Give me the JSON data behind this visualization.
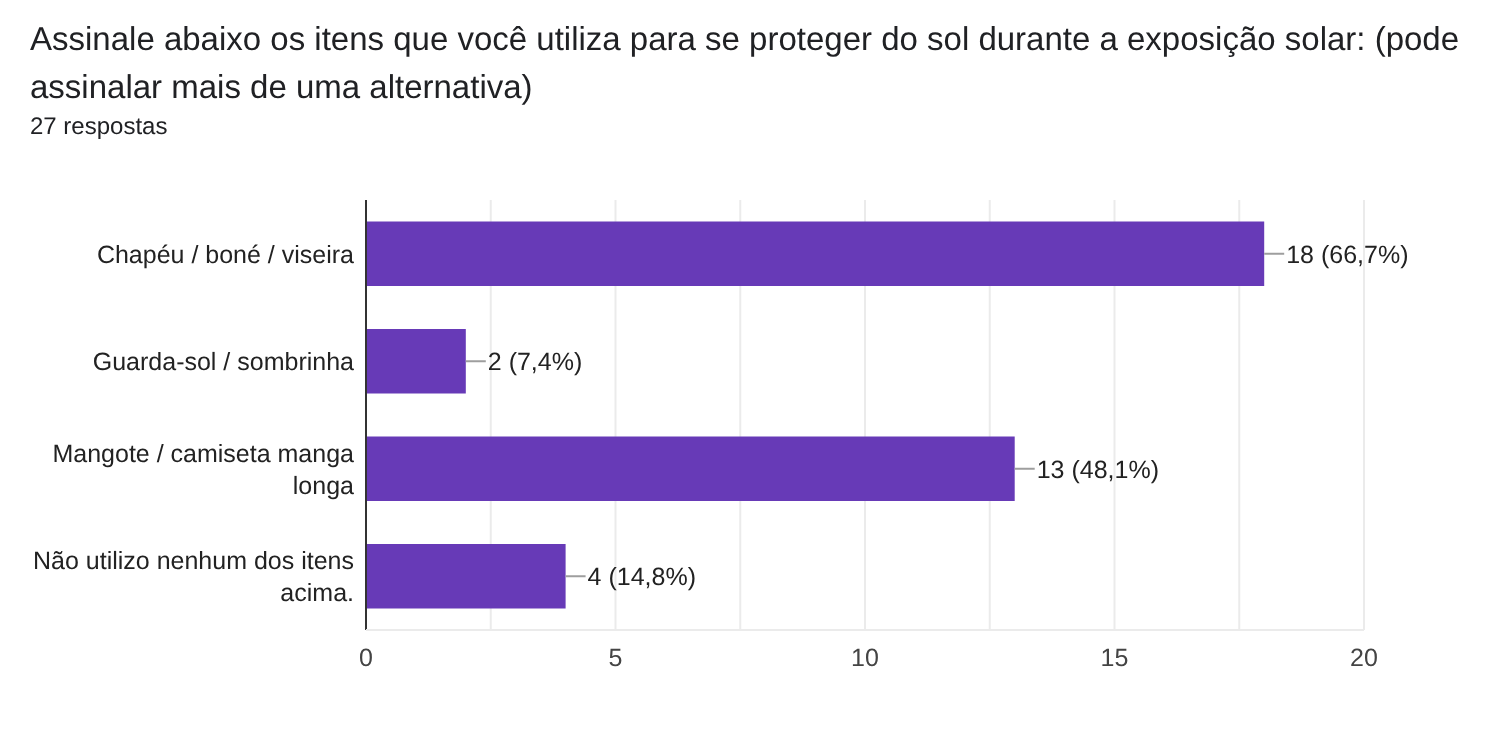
{
  "chart_data": {
    "type": "bar",
    "orientation": "horizontal",
    "title": "Assinale abaixo os itens que você utiliza para se proteger do sol durante a exposição solar: (pode assinalar mais de uma alternativa)",
    "subtitle": "27 respostas",
    "categories": [
      "Chapéu / boné / viseira",
      "Guarda-sol / sombrinha",
      "Mangote / camiseta manga longa",
      "Não utilizo nenhum dos itens acima."
    ],
    "values": [
      18,
      2,
      13,
      4
    ],
    "value_labels": [
      "18 (66,7%)",
      "2 (7,4%)",
      "13 (48,1%)",
      "4 (14,8%)"
    ],
    "color": "#673ab7",
    "xlim": [
      0,
      20
    ],
    "xticks": [
      0,
      {
        "value": 2.5,
        "label": null
      },
      5,
      {
        "value": 7.5,
        "label": null
      },
      10,
      {
        "value": 12.5,
        "label": null
      },
      15,
      {
        "value": 17.5,
        "label": null
      },
      20
    ],
    "grid": "x"
  }
}
